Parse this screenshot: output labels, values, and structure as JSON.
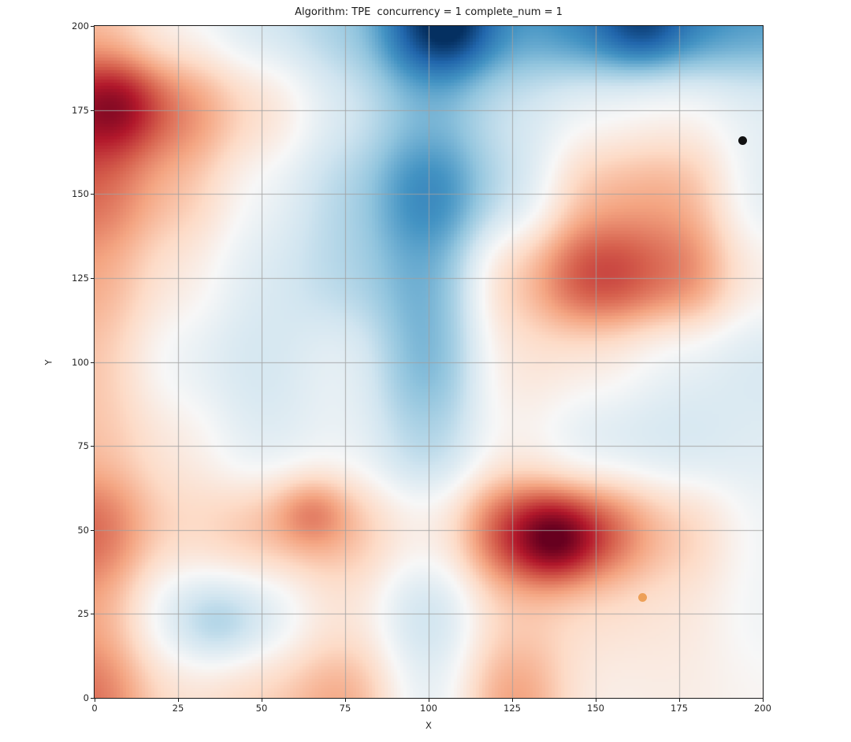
{
  "chart_data": {
    "type": "heatmap",
    "title": "Algorithm: TPE  concurrency = 1 complete_num = 1",
    "xlabel": "X",
    "ylabel": "Y",
    "xlim": [
      0,
      200
    ],
    "ylim": [
      0,
      200
    ],
    "xticks": [
      0,
      25,
      50,
      75,
      100,
      125,
      150,
      175,
      200
    ],
    "yticks": [
      0,
      25,
      50,
      75,
      100,
      125,
      150,
      175,
      200
    ],
    "grid": true,
    "grid_color": "rgba(160,160,160,0.85)",
    "colormap": "RdBu_r",
    "colormap_stops": [
      [
        -1.0,
        [
          5,
          48,
          97
        ]
      ],
      [
        -0.8,
        [
          33,
          102,
          172
        ]
      ],
      [
        -0.6,
        [
          67,
          147,
          195
        ]
      ],
      [
        -0.4,
        [
          146,
          197,
          222
        ]
      ],
      [
        -0.2,
        [
          209,
          229,
          240
        ]
      ],
      [
        0.0,
        [
          247,
          247,
          247
        ]
      ],
      [
        0.2,
        [
          253,
          219,
          199
        ]
      ],
      [
        0.4,
        [
          244,
          165,
          130
        ]
      ],
      [
        0.6,
        [
          214,
          96,
          77
        ]
      ],
      [
        0.8,
        [
          178,
          24,
          43
        ]
      ],
      [
        1.0,
        [
          103,
          0,
          31
        ]
      ]
    ],
    "grid_values": {
      "comment": "Estimated surrogate values on a 25-unit lattice; +1 = dark red, -1 = dark blue",
      "x": [
        0,
        25,
        50,
        75,
        100,
        125,
        150,
        175,
        200
      ],
      "y": [
        200,
        175,
        150,
        125,
        100,
        75,
        50,
        25,
        0
      ],
      "values": [
        [
          0.3,
          0.0,
          -0.2,
          -0.35,
          -0.9,
          -0.55,
          -0.72,
          -0.7,
          -0.58
        ],
        [
          0.85,
          0.55,
          0.2,
          -0.15,
          -0.45,
          -0.18,
          -0.02,
          0.05,
          -0.1
        ],
        [
          0.6,
          0.3,
          -0.05,
          -0.3,
          -0.75,
          -0.25,
          0.35,
          0.4,
          -0.15
        ],
        [
          0.4,
          0.1,
          -0.15,
          -0.3,
          -0.55,
          0.3,
          0.8,
          0.6,
          0.05
        ],
        [
          0.3,
          -0.08,
          -0.2,
          -0.05,
          -0.55,
          0.15,
          0.08,
          -0.1,
          -0.18
        ],
        [
          0.3,
          0.1,
          -0.15,
          -0.05,
          -0.35,
          0.05,
          -0.18,
          -0.2,
          -0.12
        ],
        [
          0.65,
          0.2,
          0.35,
          0.35,
          0.05,
          0.8,
          0.72,
          0.3,
          -0.05
        ],
        [
          0.4,
          -0.18,
          -0.18,
          0.15,
          -0.3,
          0.25,
          0.15,
          0.12,
          -0.05
        ],
        [
          0.6,
          0.15,
          0.25,
          0.45,
          -0.15,
          0.5,
          0.05,
          0.08,
          0.02
        ]
      ]
    },
    "peaks": [
      {
        "x": 107,
        "y": 200,
        "amp": -0.3,
        "sigma": 10
      },
      {
        "x": 164,
        "y": 200,
        "amp": -0.28,
        "sigma": 9
      },
      {
        "x": 138,
        "y": 47,
        "amp": 0.38,
        "sigma": 9
      },
      {
        "x": 37,
        "y": 22,
        "amp": -0.18,
        "sigma": 9
      },
      {
        "x": 65,
        "y": 56,
        "amp": 0.25,
        "sigma": 8
      },
      {
        "x": 8,
        "y": 177,
        "amp": 0.2,
        "sigma": 9
      }
    ],
    "points": [
      {
        "name": "black",
        "x": 194,
        "y": 166,
        "color": "#111111",
        "diameter": 11
      },
      {
        "name": "orange",
        "x": 164,
        "y": 30,
        "color": "#eda058",
        "diameter": 11
      }
    ]
  }
}
